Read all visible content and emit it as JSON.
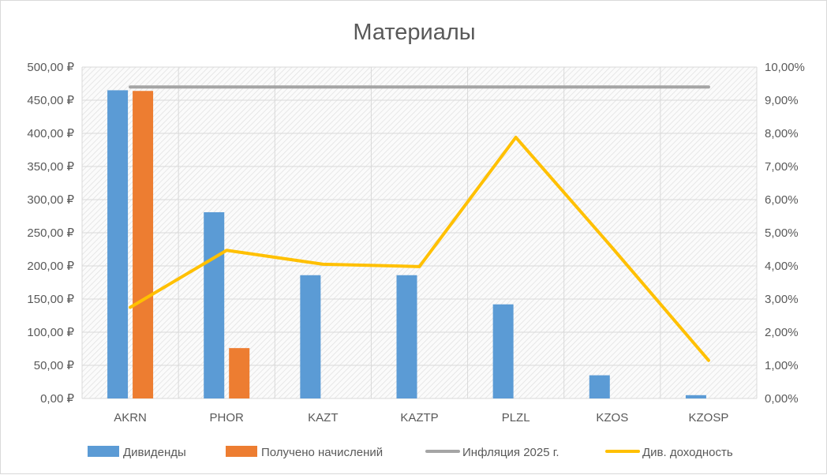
{
  "chart_data": {
    "type": "bar",
    "title": "Материалы",
    "categories": [
      "AKRN",
      "PHOR",
      "KAZT",
      "KAZTP",
      "PLZL",
      "KZOS",
      "KZOSP"
    ],
    "series": [
      {
        "name": "Дивиденды",
        "type": "bar",
        "axis": "left",
        "color": "#5b9bd5",
        "values": [
          465,
          281,
          186,
          186,
          142,
          35,
          5
        ]
      },
      {
        "name": "Получено начислений",
        "type": "bar",
        "axis": "left",
        "color": "#ed7d31",
        "values": [
          464,
          76,
          0,
          0,
          0,
          0,
          0
        ]
      },
      {
        "name": "Инфляция 2025 г.",
        "type": "line",
        "axis": "right",
        "color": "#a5a5a5",
        "values": [
          0.094,
          0.094,
          0.094,
          0.094,
          0.094,
          0.094,
          0.094
        ]
      },
      {
        "name": "Див. доходность",
        "type": "line",
        "axis": "right",
        "color": "#ffc000",
        "values": [
          0.0275,
          0.0447,
          0.0405,
          0.0398,
          0.0788,
          0.0455,
          0.0115
        ]
      }
    ],
    "y_left": {
      "min": 0,
      "max": 500,
      "ticks": [
        "0,00 ₽",
        "50,00 ₽",
        "100,00 ₽",
        "150,00 ₽",
        "200,00 ₽",
        "250,00 ₽",
        "300,00 ₽",
        "350,00 ₽",
        "400,00 ₽",
        "450,00 ₽",
        "500,00 ₽"
      ]
    },
    "y_right": {
      "min": 0,
      "max": 0.1,
      "ticks": [
        "0,00%",
        "1,00%",
        "2,00%",
        "3,00%",
        "4,00%",
        "5,00%",
        "6,00%",
        "7,00%",
        "8,00%",
        "9,00%",
        "10,00%"
      ]
    },
    "grid": true,
    "legend_position": "bottom"
  }
}
